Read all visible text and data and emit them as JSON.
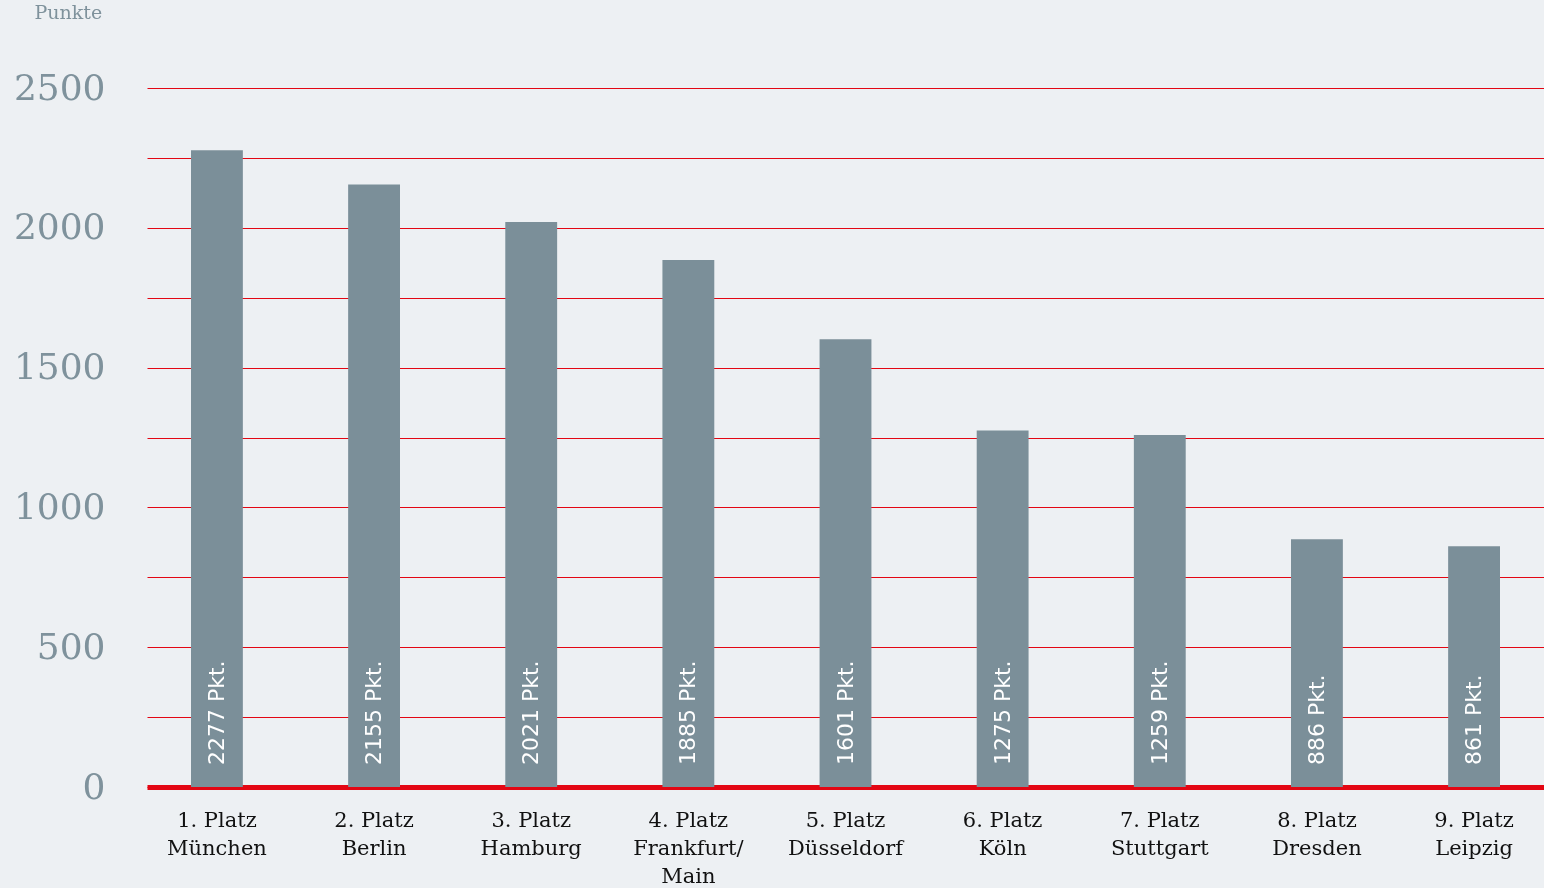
{
  "chart_data": {
    "type": "bar",
    "ylabel": "Punkte",
    "categories": [
      "1. Platz\nMünchen",
      "2. Platz\nBerlin",
      "3. Platz\nHamburg",
      "4. Platz\nFrankfurt/\nMain",
      "5. Platz\nDüsseldorf",
      "6. Platz\nKöln",
      "7. Platz\nStuttgart",
      "8. Platz\nDresden",
      "9. Platz\nLeipzig"
    ],
    "values": [
      2277,
      2155,
      2021,
      1885,
      1601,
      1275,
      1259,
      886,
      861
    ],
    "value_labels": [
      "2277 Pkt.",
      "2155 Pkt.",
      "2021 Pkt.",
      "1885 Pkt.",
      "1601 Pkt.",
      "1275 Pkt.",
      "1259 Pkt.",
      "886 Pkt.",
      "861 Pkt."
    ],
    "color": "#7b8f99",
    "ylim": [
      0,
      2500
    ],
    "yticks": [
      0,
      {
        "value": 250,
        "label": null
      },
      500,
      {
        "value": 750,
        "label": null
      },
      1000,
      {
        "value": 1250,
        "label": null
      },
      1500,
      {
        "value": 1750,
        "label": null
      },
      2000,
      {
        "value": 2250,
        "label": null
      },
      2500
    ],
    "grid": true
  }
}
